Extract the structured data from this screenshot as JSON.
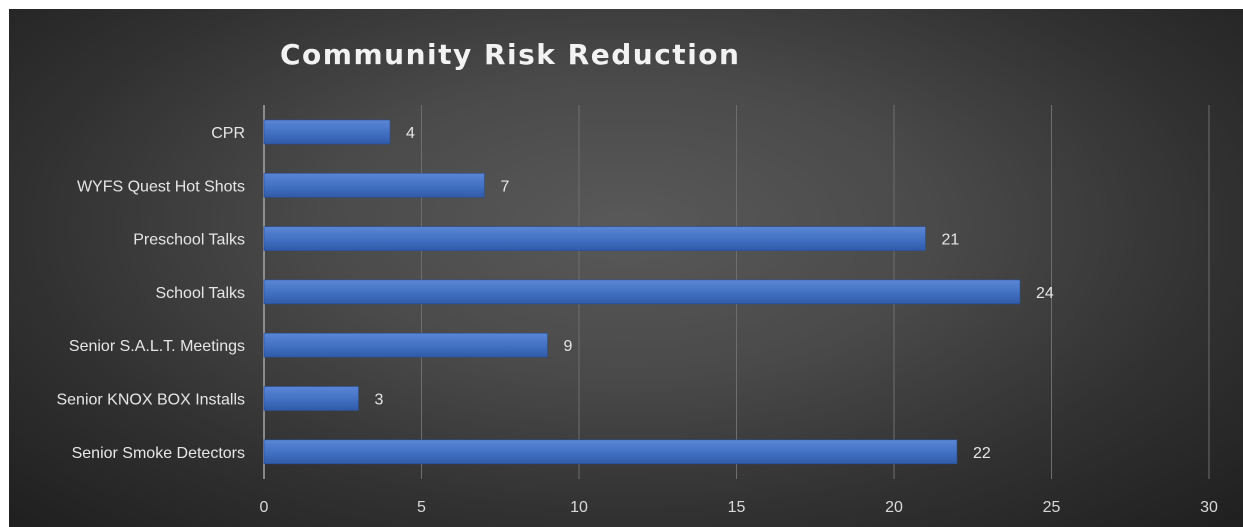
{
  "chart_data": {
    "type": "bar",
    "orientation": "horizontal",
    "title": "Community Risk Reduction",
    "categories": [
      "CPR",
      "WYFS Quest Hot Shots",
      "Preschool Talks",
      "School Talks",
      "Senior S.A.L.T. Meetings",
      "Senior KNOX BOX Installs",
      "Senior Smoke Detectors"
    ],
    "values": [
      4,
      7,
      21,
      24,
      9,
      3,
      22
    ],
    "xlim": [
      0,
      30
    ],
    "x_ticks": [
      0,
      5,
      10,
      15,
      20,
      25,
      30
    ],
    "grid": true,
    "data_labels": true,
    "legend": "none",
    "colors": {
      "bar": "#4472c4",
      "background": "#404040",
      "text": "#e6e6e6"
    }
  }
}
